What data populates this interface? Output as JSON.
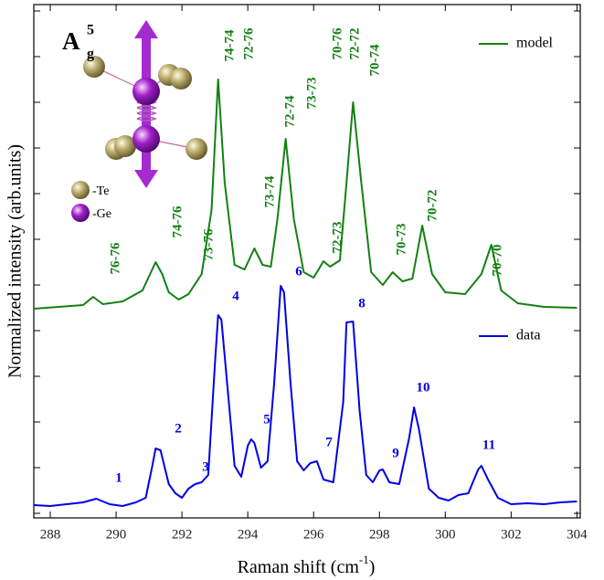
{
  "chart_data": {
    "type": "line",
    "x_label": {
      "text": "Raman shift (cm",
      "sup": "-1",
      "end": ")"
    },
    "y_label": "Normalized intensity (arb.units)",
    "xlim": [
      287.5,
      304.1
    ],
    "xticks": [
      288,
      290,
      292,
      294,
      296,
      298,
      300,
      302,
      304
    ],
    "ylim": [
      0,
      562
    ],
    "yticks": [
      5,
      55,
      105,
      155,
      205,
      255,
      305,
      355,
      405,
      455,
      505,
      555
    ],
    "series": [
      {
        "name": "model",
        "color": "#138013",
        "x": [
          287.5,
          289.0,
          289.3,
          289.6,
          290.2,
          290.8,
          291.2,
          291.4,
          291.6,
          291.9,
          292.2,
          292.6,
          292.9,
          293.1,
          293.3,
          293.6,
          293.9,
          294.2,
          294.45,
          294.7,
          294.9,
          295.15,
          295.4,
          295.7,
          296.0,
          296.3,
          296.5,
          296.8,
          297.0,
          297.2,
          297.45,
          297.75,
          298.1,
          298.4,
          298.7,
          299.0,
          299.3,
          299.6,
          300.0,
          300.6,
          301.1,
          301.4,
          301.7,
          302.2,
          303.0,
          304.0
        ],
        "values": [
          229,
          233,
          242,
          234,
          237,
          249,
          280,
          267,
          247,
          239,
          245,
          267,
          337,
          480,
          367,
          277,
          272,
          295,
          277,
          275,
          327,
          415,
          327,
          269,
          263,
          281,
          275,
          282,
          367,
          455,
          367,
          269,
          255,
          269,
          259,
          262,
          320,
          267,
          247,
          245,
          267,
          299,
          249,
          235,
          231,
          230
        ]
      },
      {
        "name": "data",
        "color": "#0000e6",
        "x": [
          287.5,
          288,
          288.5,
          289,
          289.4,
          289.8,
          290.2,
          290.6,
          290.9,
          291.1,
          291.2,
          291.35,
          291.6,
          291.8,
          292.0,
          292.2,
          292.4,
          292.6,
          292.8,
          293.0,
          293.1,
          293.2,
          293.4,
          293.6,
          293.8,
          294.0,
          294.1,
          294.2,
          294.4,
          294.6,
          294.8,
          295.0,
          295.1,
          295.3,
          295.5,
          295.7,
          295.9,
          296.1,
          296.3,
          296.6,
          296.9,
          297.0,
          297.2,
          297.4,
          297.6,
          297.8,
          298.0,
          298.1,
          298.3,
          298.6,
          298.9,
          299.05,
          299.2,
          299.5,
          299.8,
          300.1,
          300.4,
          300.7,
          301.0,
          301.1,
          301.3,
          301.6,
          302.0,
          302.5,
          303.0,
          303.5,
          304.0
        ],
        "values": [
          14,
          13,
          15,
          17,
          21,
          15,
          13,
          17,
          22,
          57,
          76,
          74,
          37,
          27,
          22,
          32,
          37,
          39,
          47,
          167,
          222,
          217,
          137,
          57,
          45,
          79,
          86,
          82,
          55,
          62,
          147,
          254,
          247,
          147,
          62,
          52,
          60,
          62,
          42,
          39,
          127,
          214,
          215,
          117,
          47,
          39,
          52,
          53,
          39,
          37,
          87,
          121,
          97,
          32,
          22,
          19,
          25,
          27,
          53,
          57,
          42,
          22,
          15,
          16,
          15,
          17,
          18
        ]
      }
    ],
    "model_labels": [
      "76-76",
      "74-76",
      "73-76",
      "74-74",
      "72-76",
      "73-74",
      "72-74",
      "73-73",
      "70-76",
      "72-73",
      "72-72",
      "70-74",
      "70-73",
      "70-72",
      "70-70"
    ],
    "data_labels": [
      "1",
      "2",
      "3",
      "4",
      "5",
      "6",
      "7",
      "8",
      "9",
      "10",
      "11"
    ],
    "inset_label": {
      "main": "A",
      "sup": "5",
      "sub": "g"
    },
    "inset_legend": [
      "-Te",
      "-Ge"
    ]
  }
}
